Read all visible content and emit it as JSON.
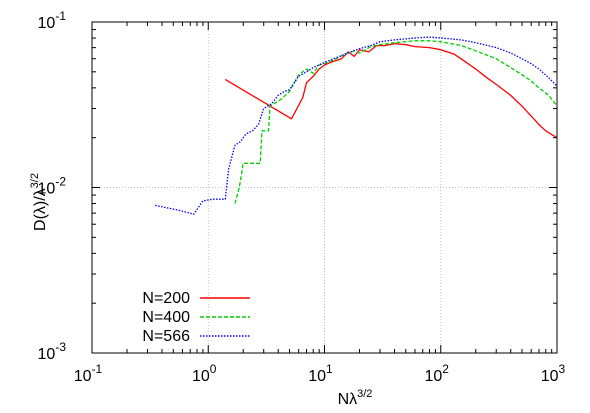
{
  "chart_data": {
    "type": "line",
    "xlabel": "Nλ",
    "xlabel_sup": "3/2",
    "ylabel": "D(λ)/λ",
    "ylabel_sup": "3/2",
    "x_scale": "log",
    "y_scale": "log",
    "xlim": [
      0.1,
      1000
    ],
    "ylim": [
      0.001,
      0.1
    ],
    "grid": true,
    "legend_position": "bottom-left",
    "x_ticks": [
      {
        "value": 0.1,
        "base": "10",
        "exp": "-1"
      },
      {
        "value": 1,
        "base": "10",
        "exp": "0"
      },
      {
        "value": 10,
        "base": "10",
        "exp": "1"
      },
      {
        "value": 100,
        "base": "10",
        "exp": "2"
      },
      {
        "value": 1000,
        "base": "10",
        "exp": "3"
      }
    ],
    "y_ticks": [
      {
        "value": 0.001,
        "base": "10",
        "exp": "-3"
      },
      {
        "value": 0.01,
        "base": "10",
        "exp": "-2"
      },
      {
        "value": 0.1,
        "base": "10",
        "exp": "-1"
      }
    ],
    "series": [
      {
        "name": "N=200",
        "color": "#ff0000",
        "dash": "solid",
        "points": [
          [
            1.4,
            0.045
          ],
          [
            5.2,
            0.026
          ],
          [
            6.5,
            0.035
          ],
          [
            7.0,
            0.043
          ],
          [
            8.0,
            0.047
          ],
          [
            9.0,
            0.052
          ],
          [
            10.0,
            0.055
          ],
          [
            12.0,
            0.058
          ],
          [
            14.0,
            0.06
          ],
          [
            16.0,
            0.066
          ],
          [
            18.0,
            0.062
          ],
          [
            20.0,
            0.068
          ],
          [
            24.0,
            0.066
          ],
          [
            28.0,
            0.072
          ],
          [
            33.0,
            0.072
          ],
          [
            40.0,
            0.074
          ],
          [
            50.0,
            0.073
          ],
          [
            60.0,
            0.071
          ],
          [
            80.0,
            0.07
          ],
          [
            100.0,
            0.068
          ],
          [
            130.0,
            0.064
          ],
          [
            160.0,
            0.058
          ],
          [
            200.0,
            0.052
          ],
          [
            250.0,
            0.046
          ],
          [
            300.0,
            0.042
          ],
          [
            400.0,
            0.036
          ],
          [
            500.0,
            0.031
          ],
          [
            600.0,
            0.027
          ],
          [
            700.0,
            0.024
          ],
          [
            800.0,
            0.022
          ],
          [
            1000.0,
            0.02
          ]
        ]
      },
      {
        "name": "N=400",
        "color": "#00cc00",
        "dash": "dashed",
        "points": [
          [
            1.7,
            0.008
          ],
          [
            1.85,
            0.01
          ],
          [
            2.0,
            0.014
          ],
          [
            2.8,
            0.014
          ],
          [
            2.9,
            0.022
          ],
          [
            3.3,
            0.022
          ],
          [
            3.4,
            0.031
          ],
          [
            4.2,
            0.034
          ],
          [
            5.0,
            0.038
          ],
          [
            6.0,
            0.048
          ],
          [
            7.0,
            0.052
          ],
          [
            8.0,
            0.049
          ],
          [
            9.0,
            0.055
          ],
          [
            10.0,
            0.056
          ],
          [
            12.0,
            0.059
          ],
          [
            15.0,
            0.064
          ],
          [
            18.0,
            0.067
          ],
          [
            20.0,
            0.065
          ],
          [
            25.0,
            0.071
          ],
          [
            30.0,
            0.073
          ],
          [
            40.0,
            0.075
          ],
          [
            60.0,
            0.077
          ],
          [
            80.0,
            0.077
          ],
          [
            100.0,
            0.076
          ],
          [
            150.0,
            0.072
          ],
          [
            200.0,
            0.067
          ],
          [
            300.0,
            0.06
          ],
          [
            400.0,
            0.053
          ],
          [
            500.0,
            0.048
          ],
          [
            600.0,
            0.044
          ],
          [
            700.0,
            0.04
          ],
          [
            850.0,
            0.036
          ],
          [
            1000.0,
            0.031
          ]
        ]
      },
      {
        "name": "N=566",
        "color": "#0000ff",
        "dash": "dotted",
        "points": [
          [
            0.35,
            0.0078
          ],
          [
            0.55,
            0.0073
          ],
          [
            0.75,
            0.0069
          ],
          [
            0.9,
            0.0083
          ],
          [
            1.1,
            0.0085
          ],
          [
            1.4,
            0.0085
          ],
          [
            1.5,
            0.013
          ],
          [
            1.7,
            0.018
          ],
          [
            1.9,
            0.019
          ],
          [
            2.1,
            0.021
          ],
          [
            2.4,
            0.022
          ],
          [
            2.7,
            0.024
          ],
          [
            3.0,
            0.03
          ],
          [
            3.5,
            0.032
          ],
          [
            4.0,
            0.036
          ],
          [
            4.5,
            0.038
          ],
          [
            5.0,
            0.039
          ],
          [
            6.0,
            0.047
          ],
          [
            7.0,
            0.05
          ],
          [
            8.0,
            0.053
          ],
          [
            10.0,
            0.057
          ],
          [
            12.0,
            0.06
          ],
          [
            15.0,
            0.064
          ],
          [
            20.0,
            0.069
          ],
          [
            25.0,
            0.072
          ],
          [
            30.0,
            0.076
          ],
          [
            40.0,
            0.078
          ],
          [
            60.0,
            0.08
          ],
          [
            80.0,
            0.081
          ],
          [
            100.0,
            0.08
          ],
          [
            150.0,
            0.078
          ],
          [
            200.0,
            0.075
          ],
          [
            300.0,
            0.07
          ],
          [
            400.0,
            0.065
          ],
          [
            500.0,
            0.06
          ],
          [
            600.0,
            0.056
          ],
          [
            700.0,
            0.052
          ],
          [
            850.0,
            0.046
          ],
          [
            1000.0,
            0.041
          ]
        ]
      }
    ]
  }
}
